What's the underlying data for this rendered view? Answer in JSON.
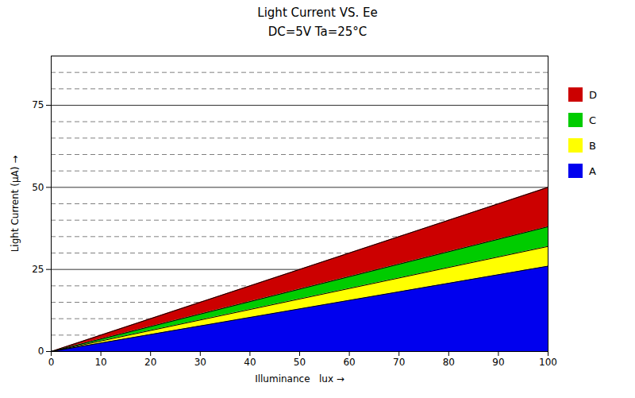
{
  "chart_data": {
    "type": "area",
    "title": "Light Current VS. Ee",
    "subtitle": "DC=5V   Ta=25°C",
    "x_label": "Illuminance   lux",
    "y_label": "Light Current (μA)",
    "x": [
      0,
      100
    ],
    "baseline": [
      0,
      0
    ],
    "series": [
      {
        "name": "A",
        "color": "#0000ee",
        "values": [
          0,
          26
        ]
      },
      {
        "name": "B",
        "color": "#ffff00",
        "values": [
          0,
          32
        ]
      },
      {
        "name": "C",
        "color": "#00cc00",
        "values": [
          0,
          38
        ]
      },
      {
        "name": "D",
        "color": "#cc0000",
        "values": [
          0,
          50
        ]
      }
    ],
    "xlim": [
      0,
      100
    ],
    "ylim": [
      0,
      90
    ],
    "xticks": [
      0,
      10,
      20,
      30,
      40,
      50,
      60,
      70,
      80,
      90,
      100
    ],
    "yticks": [
      0,
      25,
      50,
      75
    ],
    "grid": true,
    "minor_grid_y": [
      5,
      10,
      15,
      20,
      30,
      35,
      40,
      45,
      55,
      60,
      65,
      70,
      80,
      85
    ],
    "legend": "right"
  }
}
